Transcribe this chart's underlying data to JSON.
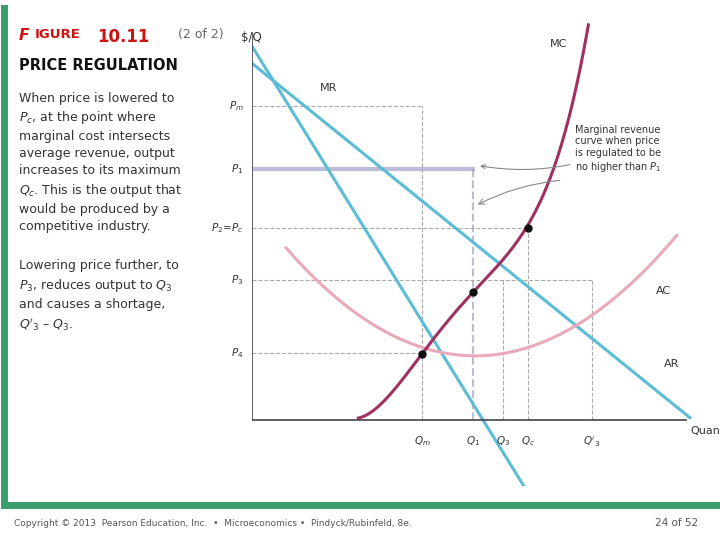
{
  "footer": "Copyright © 2013  Pearson Education, Inc.  •  Microeconomics •  Pindyck/Rubinfeld, 8e.",
  "page": "24 of 52",
  "ylabel": "$/Q",
  "xlabel": "Quantity",
  "price_values": [
    0.85,
    0.68,
    0.52,
    0.38,
    0.18
  ],
  "qty_values": [
    0.4,
    0.52,
    0.59,
    0.65,
    0.8
  ],
  "bg_color": "#ffffff",
  "border_color": "#3a9e6e",
  "mr_color": "#5bbcd6",
  "mc_color": "#a03060",
  "ac_color": "#e8aab8",
  "ar_color": "#5bbcd6",
  "p1_line_color": "#9898c8",
  "dashed_color": "#aaaaaa",
  "dot_color": "#111111",
  "annotation_color": "#888888",
  "text_color": "#333333"
}
